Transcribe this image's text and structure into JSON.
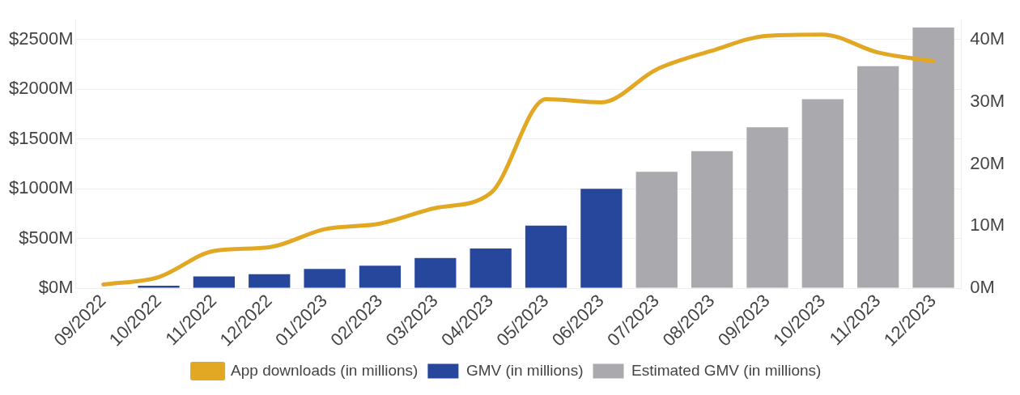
{
  "chart_data": {
    "type": "bar",
    "categories": [
      "09/2022",
      "10/2022",
      "11/2022",
      "12/2022",
      "01/2023",
      "02/2023",
      "03/2023",
      "04/2023",
      "05/2023",
      "06/2023",
      "07/2023",
      "08/2023",
      "09/2023",
      "10/2023",
      "11/2023",
      "12/2023"
    ],
    "series": [
      {
        "name": "App downloads (in millions)",
        "type": "line",
        "axis": "y2",
        "color": "#e2a823",
        "values": [
          0.6,
          1.8,
          6.0,
          6.6,
          9.5,
          10.4,
          12.9,
          15.3,
          30.4,
          29.9,
          35.2,
          38.2,
          40.6,
          40.8,
          37.9,
          36.5
        ]
      },
      {
        "name": "GMV (in millions)",
        "color": "#26479c",
        "values": [
          null,
          25,
          118,
          141,
          194,
          227,
          303,
          400,
          630,
          1000,
          null,
          null,
          null,
          null,
          null,
          null
        ]
      },
      {
        "name": "Estimated GMV (in millions)",
        "color": "#aaaaae",
        "values": [
          null,
          null,
          null,
          null,
          null,
          null,
          null,
          null,
          null,
          null,
          1171,
          1378,
          1617,
          1900,
          2231,
          2620
        ]
      }
    ],
    "ylim": [
      0,
      2700
    ],
    "yticks": [
      {
        "value": 0,
        "label": "$0M"
      },
      {
        "value": 500,
        "label": "$500M"
      },
      {
        "value": 1000,
        "label": "$1000M"
      },
      {
        "value": 1500,
        "label": "$1500M"
      },
      {
        "value": 2000,
        "label": "$2000M"
      },
      {
        "value": 2500,
        "label": "$2500M"
      }
    ],
    "y2lim": [
      0,
      43.2
    ],
    "y2ticks": [
      {
        "value": 0,
        "label": "0M"
      },
      {
        "value": 10,
        "label": "10M"
      },
      {
        "value": 20,
        "label": "20M"
      },
      {
        "value": 30,
        "label": "30M"
      },
      {
        "value": 40,
        "label": "40M"
      }
    ],
    "grid": "y",
    "legend": "bottom"
  }
}
